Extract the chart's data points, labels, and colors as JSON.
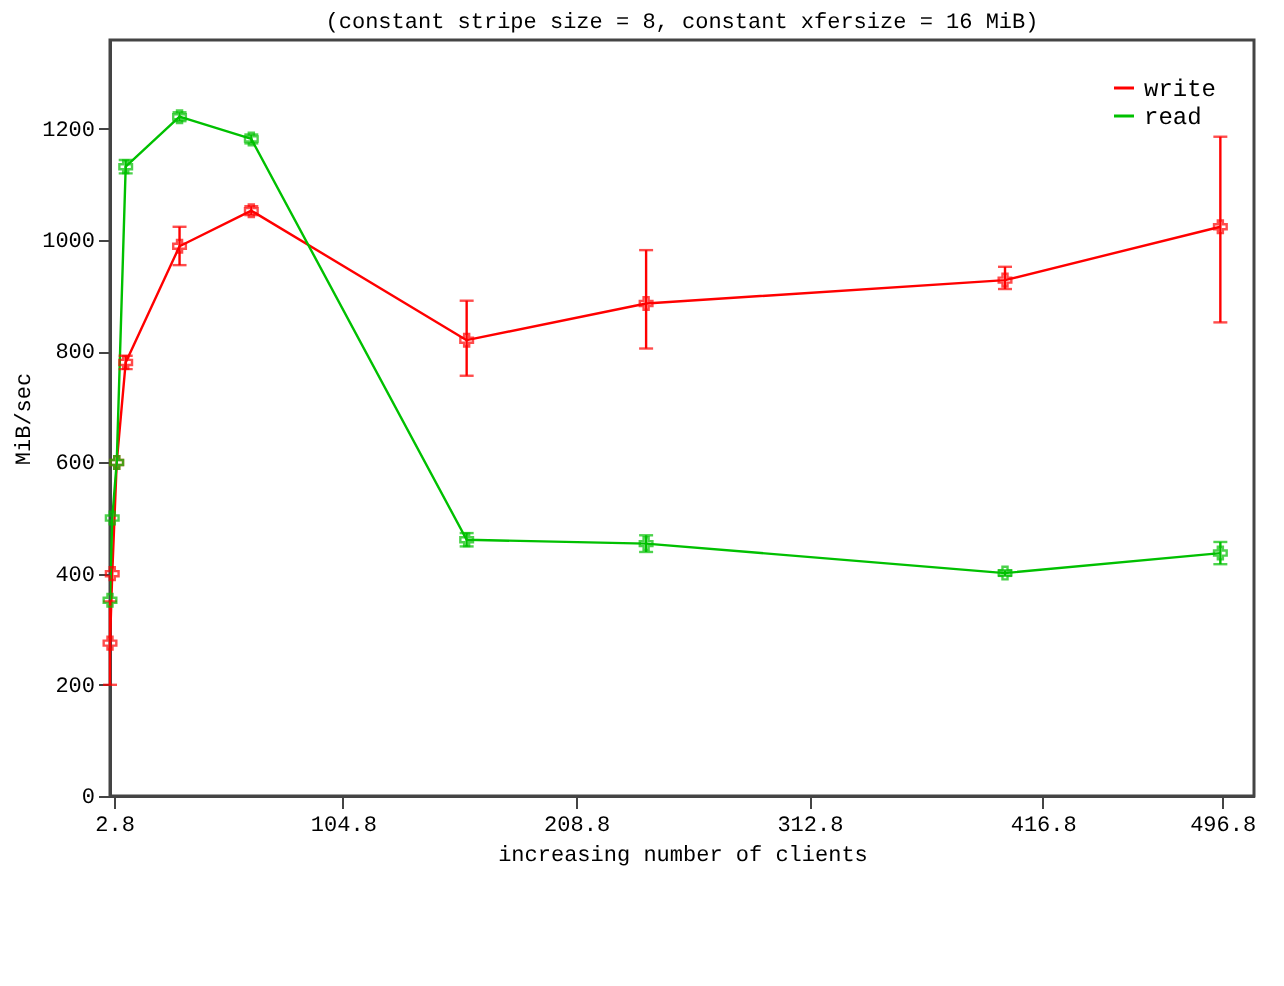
{
  "chart_data": {
    "type": "line",
    "title": "(constant stripe size = 8,  constant xfersize = 16 MiB)",
    "xlabel": "increasing number of clients",
    "ylabel": "MiB/sec",
    "x": [
      1,
      2,
      4,
      8,
      32,
      64,
      160,
      240,
      400,
      496
    ],
    "series": [
      {
        "name": "write",
        "color": "#ff0000",
        "values": [
          275,
          400,
          600,
          780,
          989,
          1053,
          820,
          886,
          928,
          1024
        ],
        "errors": [
          75,
          null,
          null,
          12,
          [
            955,
            1024
          ],
          8,
          [
            756,
            891
          ],
          [
            805,
            982
          ],
          [
            912,
            952
          ],
          [
            852,
            1186
          ]
        ]
      },
      {
        "name": "read",
        "color": "#00c000",
        "values": [
          352,
          500,
          600,
          1132,
          1222,
          1182,
          461,
          454,
          401,
          437
        ],
        "errors": [
          null,
          null,
          null,
          12,
          8,
          8,
          12,
          15,
          5,
          20
        ]
      }
    ],
    "xlim": [
      1,
      511
    ],
    "xticks": [
      2.8,
      104.8,
      208.8,
      312.8,
      416.8,
      496.8
    ],
    "ylim": [
      0,
      1360
    ],
    "yticks": [
      0,
      200,
      400,
      600,
      800,
      1000,
      1200
    ],
    "grid": false,
    "legend": "top right",
    "marker": "cross",
    "line_style": "solid"
  }
}
